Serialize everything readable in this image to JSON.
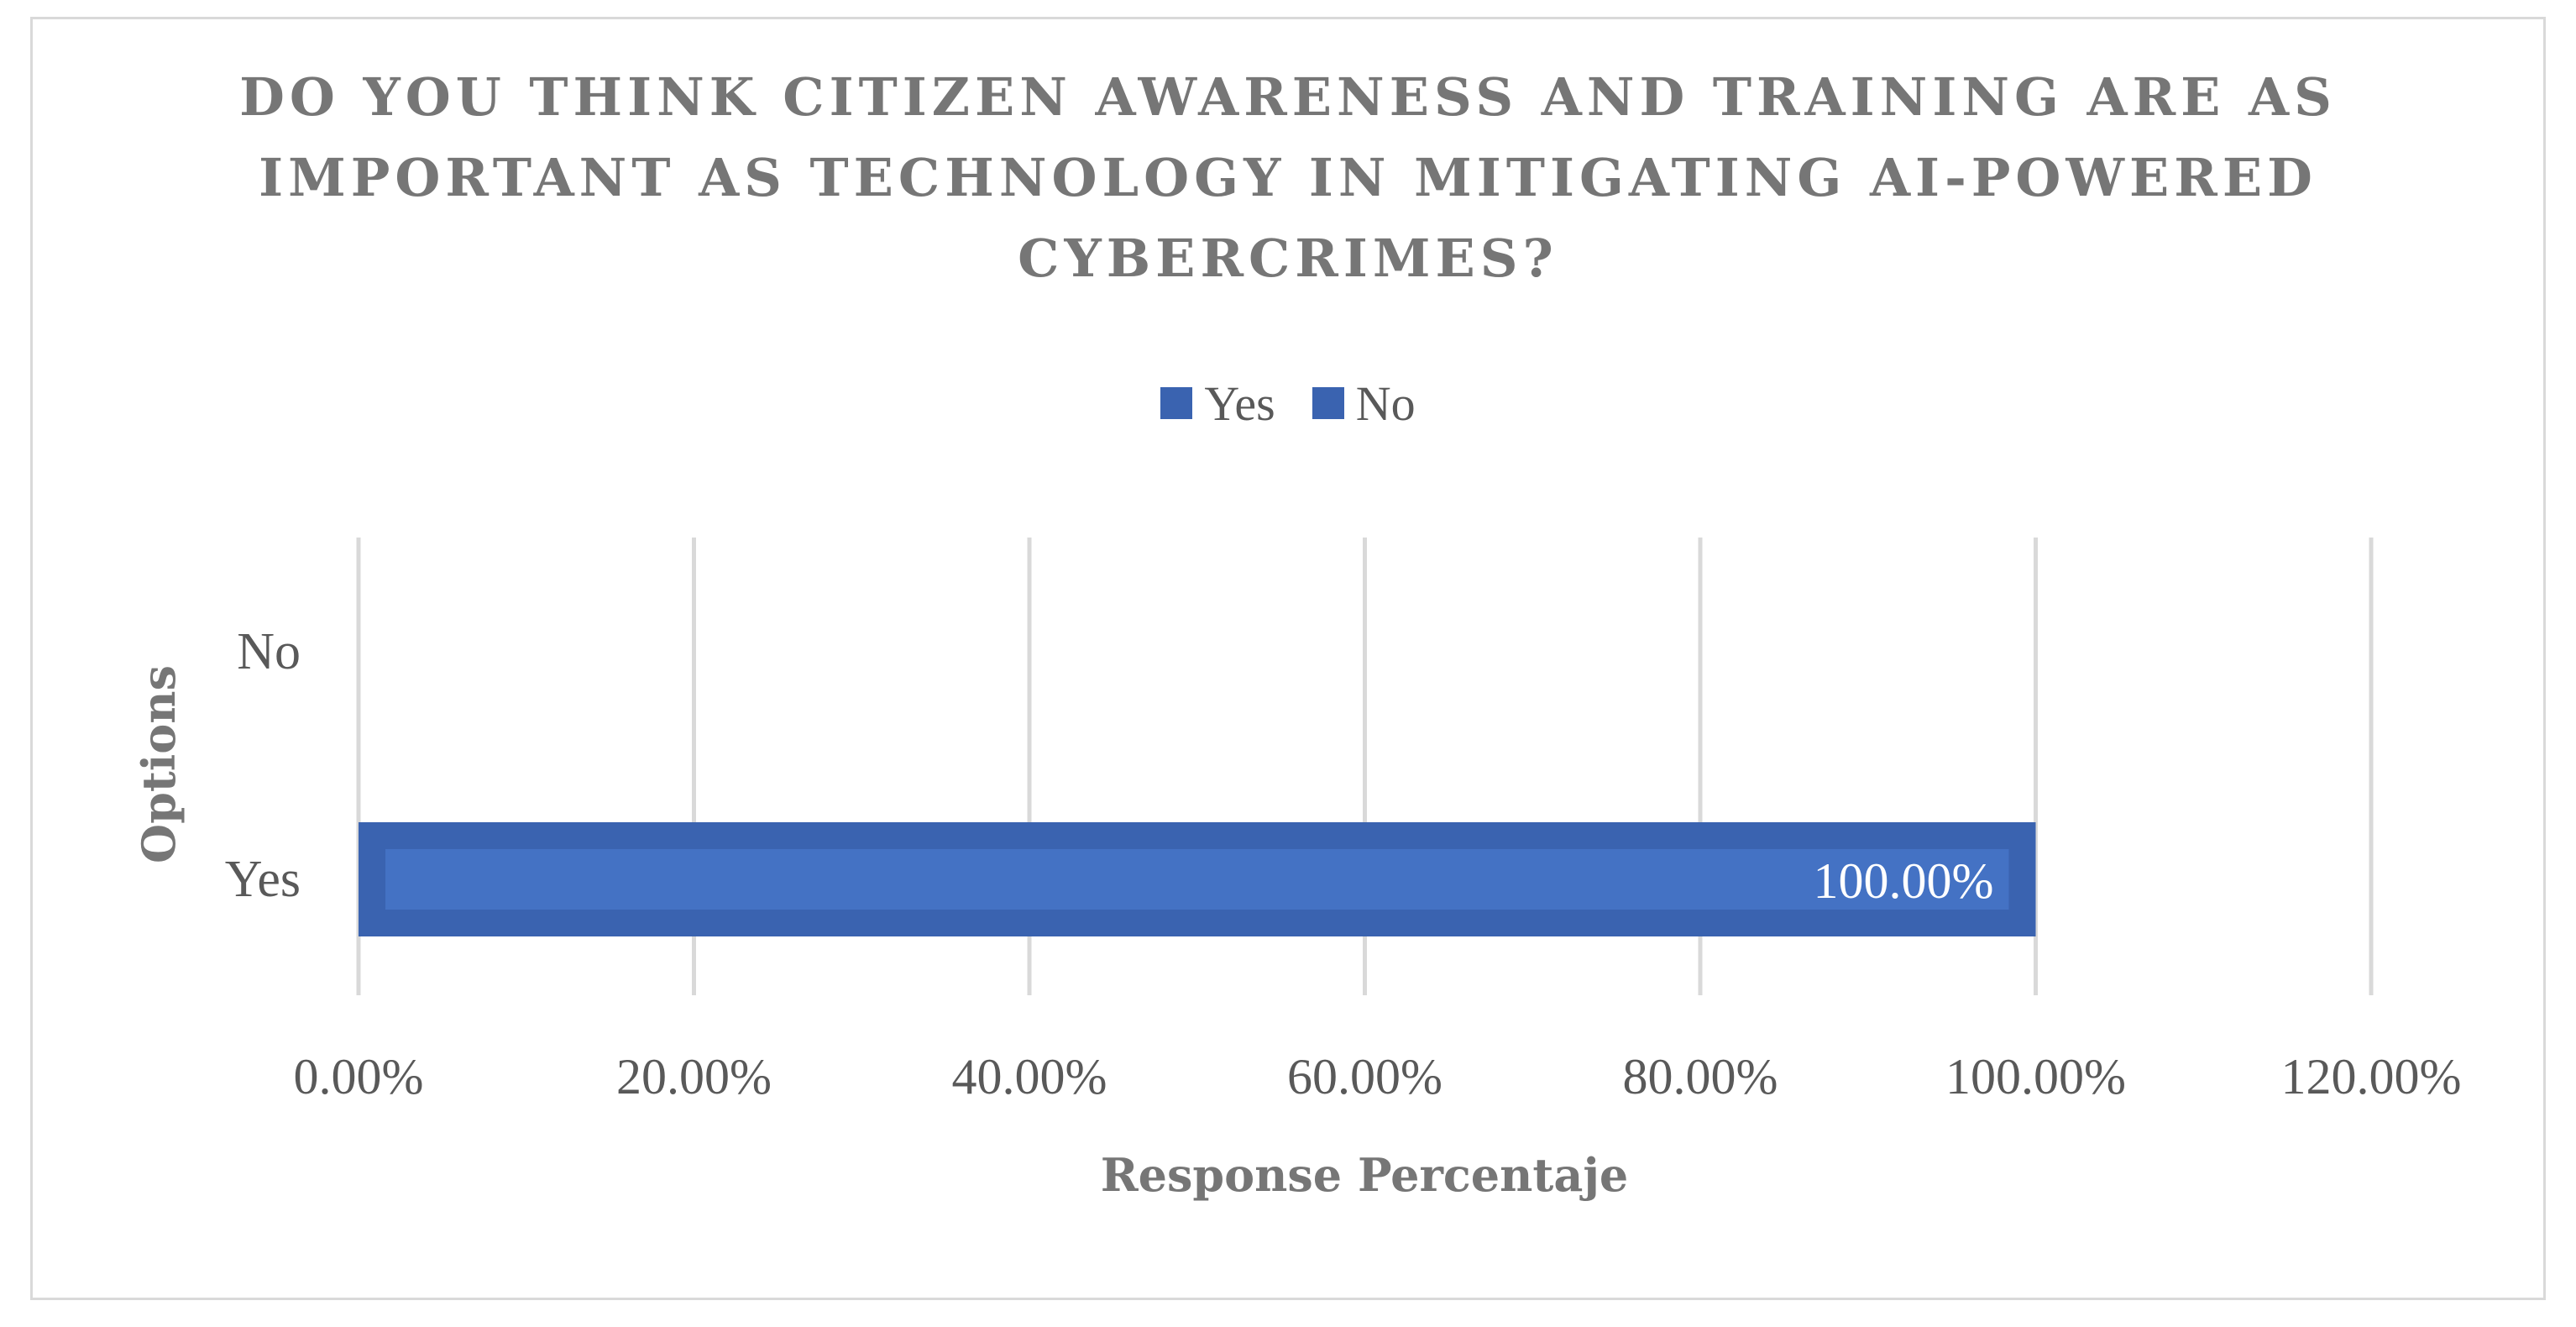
{
  "chart_data": {
    "type": "bar",
    "orientation": "horizontal",
    "title_lines": [
      "DO YOU THINK CITIZEN AWARENESS AND TRAINING ARE AS",
      "IMPORTANT AS TECHNOLOGY IN MITIGATING AI-POWERED",
      "CYBERCRIMES?"
    ],
    "xlabel": "Response Percentaje",
    "ylabel": "Options",
    "categories": [
      "Yes",
      "No"
    ],
    "series": [
      {
        "name": "Yes",
        "values": [
          100,
          0
        ],
        "color": "#3a63b0"
      },
      {
        "name": "No",
        "values": [
          0,
          0
        ],
        "color": "#3a63b0"
      }
    ],
    "data_labels": [
      "100.00%"
    ],
    "xlim": [
      0,
      120
    ],
    "x_ticks": [
      0,
      20,
      40,
      60,
      80,
      100,
      120
    ],
    "x_tick_labels": [
      "0.00%",
      "20.00%",
      "40.00%",
      "60.00%",
      "80.00%",
      "100.00%",
      "120.00%"
    ],
    "grid": true,
    "legend_position": "top-center"
  }
}
